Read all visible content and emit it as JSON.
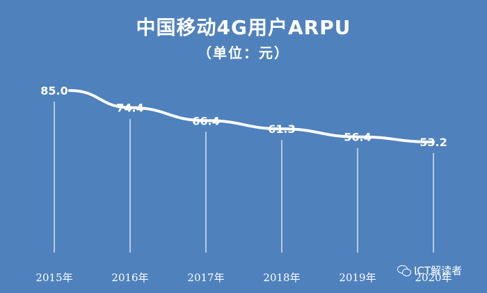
{
  "chart_data": {
    "type": "line",
    "title": "中国移动4G用户ARPU",
    "subtitle": "（单位：元）",
    "categories": [
      "2015年",
      "2016年",
      "2017年",
      "2018年",
      "2019年",
      "2020年"
    ],
    "values": [
      85.0,
      74.4,
      66.4,
      61.3,
      56.4,
      53.2
    ],
    "value_labels": [
      "85.0",
      "74.4",
      "66.4",
      "61.3",
      "56.4",
      "53.2"
    ],
    "ylim": [
      0,
      100
    ],
    "grid": false,
    "drop_lines": true,
    "line_color": "#ffffff",
    "background": "#4f81bd"
  },
  "watermark": {
    "icon": "wechat-icon",
    "text": "ICT解读者"
  }
}
